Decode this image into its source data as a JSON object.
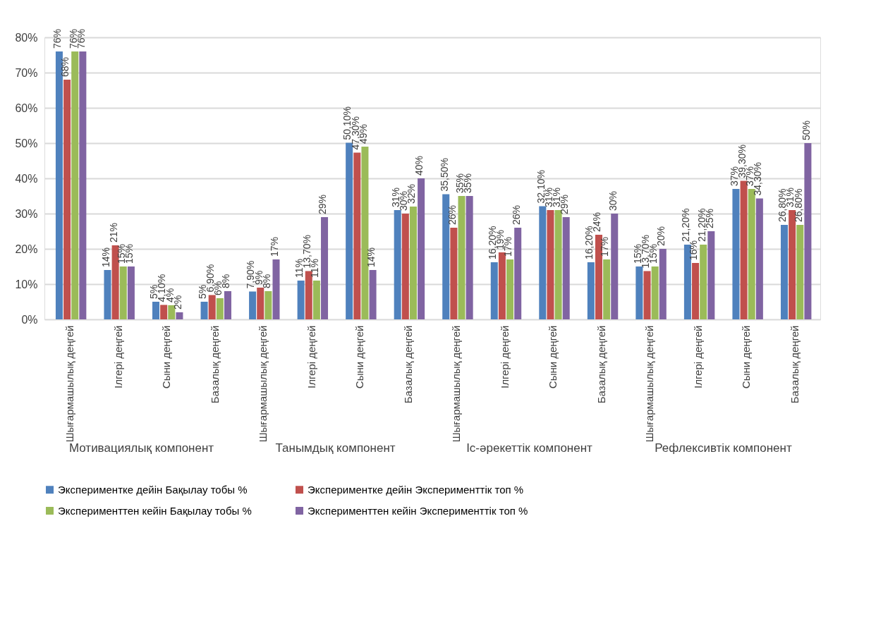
{
  "chart_data": {
    "type": "bar",
    "categories": [
      "Шығармашылық деңгей",
      "Ілгері деңгей",
      "Сыни деңгей",
      "Базалық деңгей",
      "Шығармашылық деңгей",
      "Ілгері деңгей",
      "Сыни деңгей",
      "Базалық деңгей",
      "Шығармашылық деңгей",
      "Ілгері деңгей",
      "Сыни деңгей",
      "Базалық деңгей",
      "Шығармашылық деңгей",
      "Ілгері деңгей",
      "Сыни деңгей",
      "Базалық деңгей"
    ],
    "series": [
      {
        "name": "Экспериментке дейін Бақылау тобы %",
        "color": "#4f81bd",
        "values": [
          76,
          14,
          5,
          5,
          7.9,
          11,
          50.1,
          31,
          35.5,
          16.2,
          32.1,
          16.2,
          15,
          21.2,
          37,
          26.8
        ],
        "value_labels": [
          "76%",
          "14%",
          "5%",
          "5%",
          "7,90%",
          "11%",
          "50,10%",
          "31%",
          "35,50%",
          "16,20%",
          "32,10%",
          "16,20%",
          "15%",
          "21,20%",
          "37%",
          "26,80%"
        ]
      },
      {
        "name": "Экспериментке дейін Эксперименттік  топ %",
        "color": "#c0504d",
        "values": [
          68,
          21,
          4.1,
          6.9,
          9,
          13.7,
          47.3,
          30,
          26,
          19,
          31,
          24,
          13.7,
          16,
          39.3,
          31
        ],
        "value_labels": [
          "68%",
          "21%",
          "4,10%",
          "6,90%",
          "9%",
          "13,70%",
          "47,30%",
          "30%",
          "26%",
          "19%",
          "31%",
          "24%",
          "13,70%",
          "16%",
          "39,30%",
          "31%"
        ]
      },
      {
        "name": "Эксперименттен кейін Бақылау тобы %",
        "color": "#9bbb59",
        "values": [
          76,
          15,
          4,
          6,
          8,
          11,
          49,
          32,
          35,
          17,
          31,
          17,
          15,
          21.2,
          37,
          26.8
        ],
        "value_labels": [
          "76%",
          "15%",
          "4%",
          "6%",
          "8%",
          "11%",
          "49%",
          "32%",
          "35%",
          "17%",
          "31%",
          "17%",
          "15%",
          "21,20%",
          "37%",
          "26,80%"
        ]
      },
      {
        "name": "Эксперименттен кейін Эксперименттік  топ %",
        "color": "#8064a2",
        "values": [
          76,
          15,
          2,
          8,
          17,
          29,
          14,
          40,
          35,
          26,
          29,
          30,
          20,
          25,
          34.3,
          50
        ],
        "value_labels": [
          "76%",
          "15%",
          "2%",
          "8%",
          "17%",
          "29%",
          "14%",
          "40%",
          "35%",
          "26%",
          "29%",
          "30%",
          "20%",
          "25%",
          "34,30%",
          "50%"
        ]
      }
    ],
    "ylim": [
      0,
      80
    ],
    "yticks": [
      {
        "value": 0,
        "label": "0%"
      },
      {
        "value": 10,
        "label": "10%"
      },
      {
        "value": 20,
        "label": "20%"
      },
      {
        "value": 30,
        "label": "30%"
      },
      {
        "value": 40,
        "label": "40%"
      },
      {
        "value": 50,
        "label": "50%"
      },
      {
        "value": 60,
        "label": "60%"
      },
      {
        "value": 70,
        "label": "70%"
      },
      {
        "value": 80,
        "label": "80%"
      }
    ],
    "grid": "y",
    "legend": "bottom",
    "annotations": [
      "Мотивациялық компонент",
      "Танымдық  компонент",
      "Іс-әрекеттік компонент",
      "Рефлексивтік компонент"
    ]
  }
}
